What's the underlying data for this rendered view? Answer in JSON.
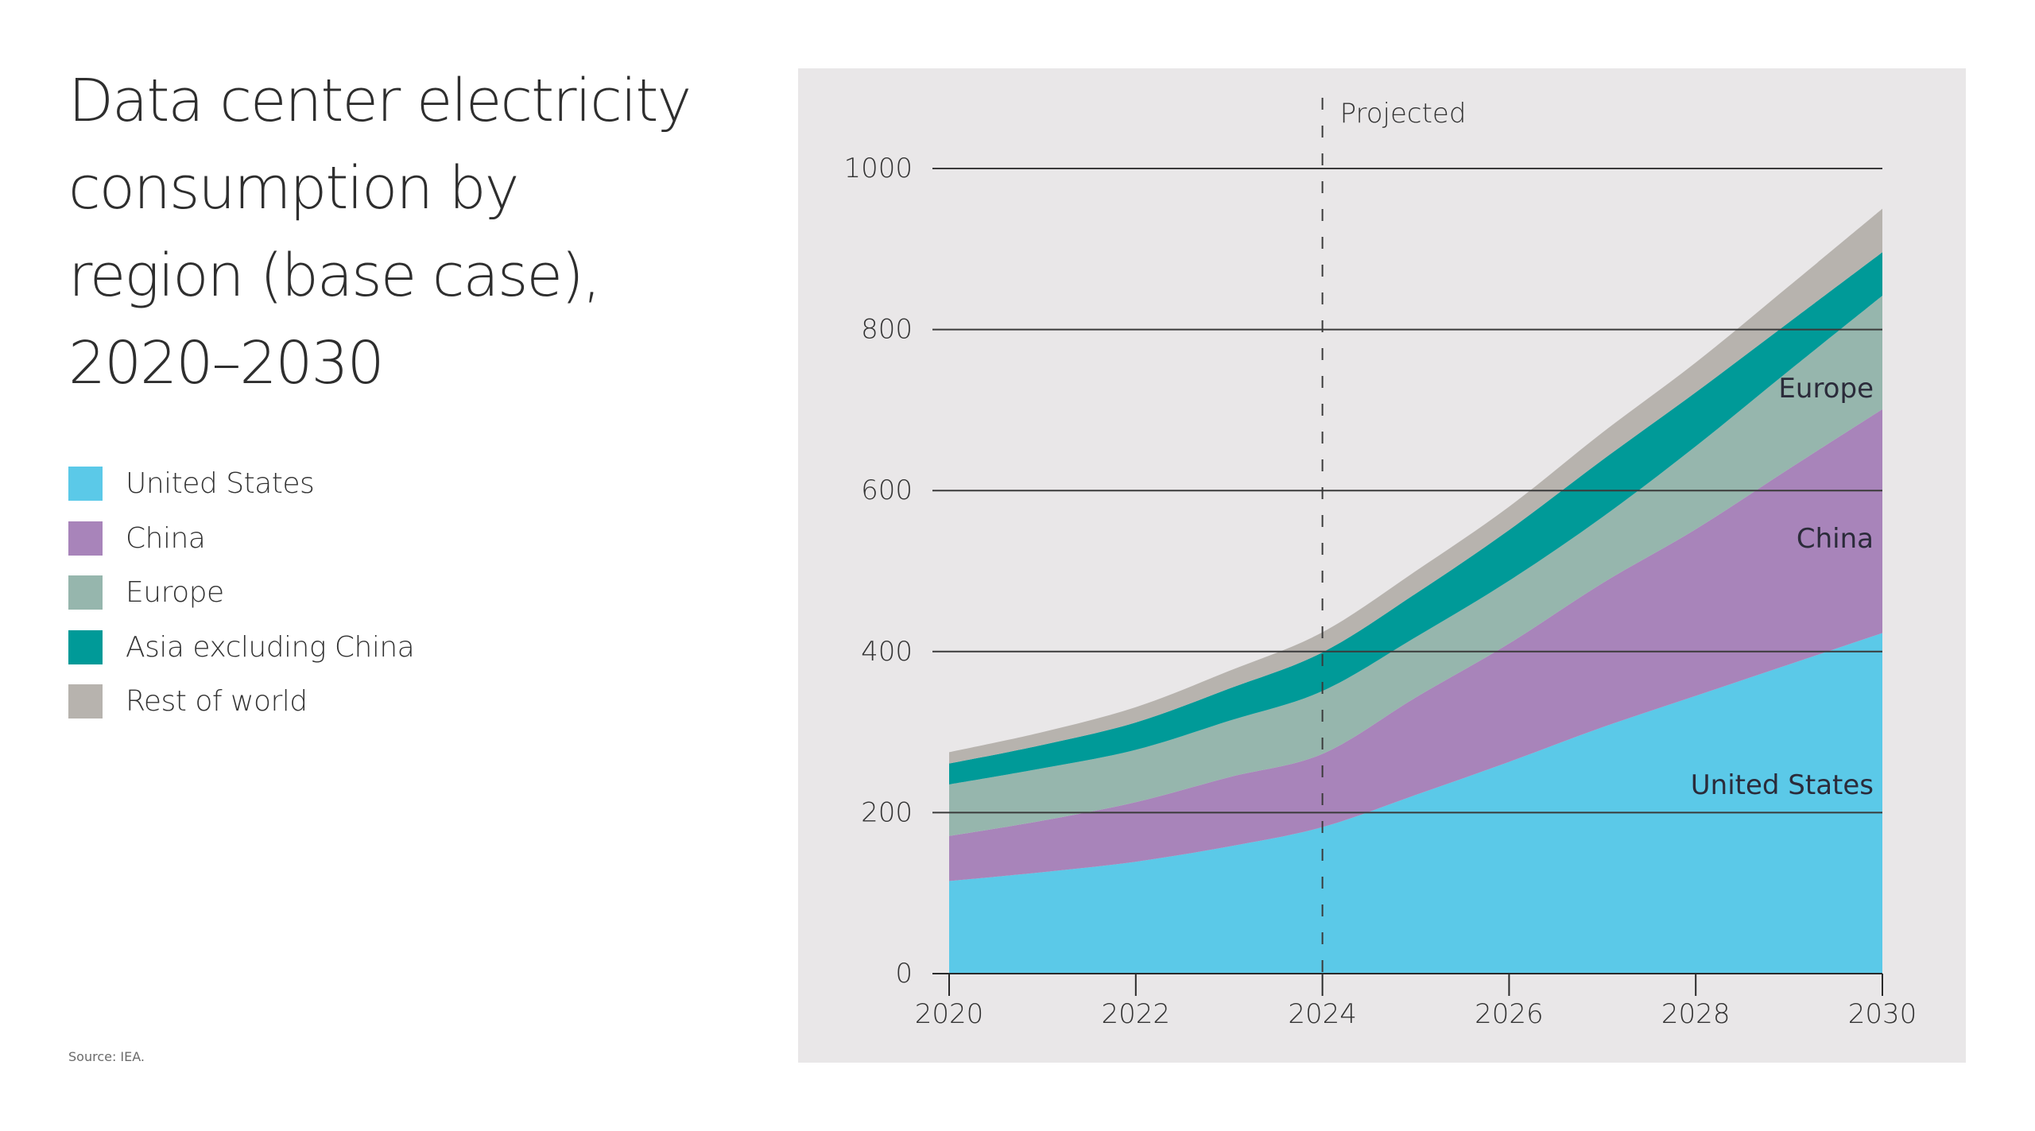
{
  "title": "Data center electricity\n consumption by\nregion (base case),\n2020–2030",
  "source": "Source: IEA.",
  "legend": [
    {
      "label": "United States",
      "color": "#5bc9e8"
    },
    {
      "label": "China",
      "color": "#a884ba"
    },
    {
      "label": "Europe",
      "color": "#96b6ad"
    },
    {
      "label": "Asia excluding China",
      "color": "#009a98"
    },
    {
      "label": "Rest of world",
      "color": "#b7b3ae"
    }
  ],
  "chart_data": {
    "type": "area",
    "stacked": true,
    "title": "Data center electricity consumption by region (base case), 2020–2030",
    "xlabel": "",
    "ylabel": "",
    "x": [
      2020,
      2021,
      2022,
      2023,
      2024,
      2025,
      2026,
      2027,
      2028,
      2029,
      2030
    ],
    "xlim": [
      2020,
      2030
    ],
    "ylim": [
      0,
      1000
    ],
    "x_ticks": [
      "2020",
      "2022",
      "2024",
      "2026",
      "2028",
      "2030"
    ],
    "x_tick_values": [
      2020,
      2022,
      2024,
      2026,
      2028,
      2030
    ],
    "y_ticks": [
      "0",
      "200",
      "400",
      "600",
      "800",
      "1000"
    ],
    "y_tick_values": [
      0,
      200,
      400,
      600,
      800,
      1000
    ],
    "grid": "horizontal",
    "series": [
      {
        "name": "United States",
        "color": "#5bc9e8",
        "values": [
          115,
          126,
          139,
          158,
          182,
          222,
          263,
          306,
          345,
          384,
          423
        ]
      },
      {
        "name": "China",
        "color": "#a884ba",
        "values": [
          56,
          64,
          74,
          86,
          91,
          121,
          147,
          179,
          207,
          243,
          278
        ]
      },
      {
        "name": "Europe",
        "color": "#96b6ad",
        "values": [
          64,
          65,
          65,
          70,
          78,
          75,
          78,
          82,
          103,
          122,
          141
        ]
      },
      {
        "name": "Asia excluding China",
        "color": "#009a98",
        "values": [
          26,
          29,
          34,
          40,
          48,
          54,
          63,
          71,
          67,
          60,
          54
        ]
      },
      {
        "name": "Rest of world",
        "color": "#b7b3ae",
        "values": [
          14,
          16,
          19,
          22,
          25,
          28,
          29,
          34,
          37,
          45,
          54
        ]
      }
    ],
    "annotations": [
      {
        "text": "Projected",
        "x": 2024,
        "style": "dashed vertical line"
      },
      {
        "text": "Europe",
        "series": "Europe"
      },
      {
        "text": "China",
        "series": "China"
      },
      {
        "text": "United States",
        "series": "United States"
      }
    ]
  }
}
